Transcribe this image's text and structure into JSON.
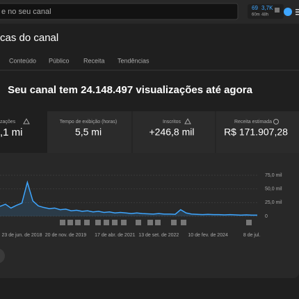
{
  "header": {
    "search_placeholder": "e no seu canal",
    "stats": [
      {
        "value": "69",
        "label": "60m"
      },
      {
        "value": "3,7K",
        "label": "48h"
      }
    ]
  },
  "title": "cas do canal",
  "tabs": [
    "Conteúdo",
    "Público",
    "Receita",
    "Tendências"
  ],
  "headline": "Seu canal tem 24.148.497 visualizações até agora",
  "cards": [
    {
      "label": "zações",
      "value": ",1 mi"
    },
    {
      "label": "Tempo de exibição (horas)",
      "value": "5,5 mi"
    },
    {
      "label": "Inscritos",
      "value": "+246,8 mil"
    },
    {
      "label": "Receita estimada",
      "value": "R$ 171.907,28"
    }
  ],
  "chart_data": {
    "type": "line",
    "categories": [
      null,
      null,
      null,
      null,
      "23 de jun. de 2018",
      null,
      null,
      null,
      null,
      null,
      null,
      null,
      "20 de nov. de 2019",
      null,
      null,
      null,
      null,
      null,
      null,
      null,
      null,
      "17 de abr. de 2021",
      null,
      null,
      null,
      null,
      null,
      null,
      null,
      "13 de set. de 2022",
      null,
      null,
      null,
      null,
      null,
      null,
      null,
      null,
      "10 de fev. de 2024",
      null,
      null,
      null,
      null,
      null,
      null,
      null,
      "8 de jul.",
      null
    ],
    "series": [
      {
        "color": "#3ea6ff",
        "values": [
          18000,
          22000,
          15000,
          20000,
          24000,
          62000,
          28000,
          19000,
          16000,
          14000,
          15000,
          12000,
          13000,
          10000,
          11000,
          9000,
          10000,
          8000,
          9000,
          7000,
          8000,
          6000,
          7000,
          6000,
          5000,
          6000,
          5000,
          4500,
          4000,
          5000,
          4000,
          4000,
          3500,
          12000,
          6000,
          4000,
          3500,
          3000,
          3500,
          3000,
          3000,
          2500,
          3000,
          2500,
          2000,
          2500,
          2000,
          2000
        ]
      }
    ],
    "ylim": [
      0,
      75000
    ],
    "yticks": [
      0,
      {
        "value": 25000,
        "label": "25,0 mil"
      },
      {
        "value": 50000,
        "label": "50,0 mil"
      },
      {
        "value": 75000,
        "label": "75,0 mil"
      }
    ],
    "grid": true
  }
}
